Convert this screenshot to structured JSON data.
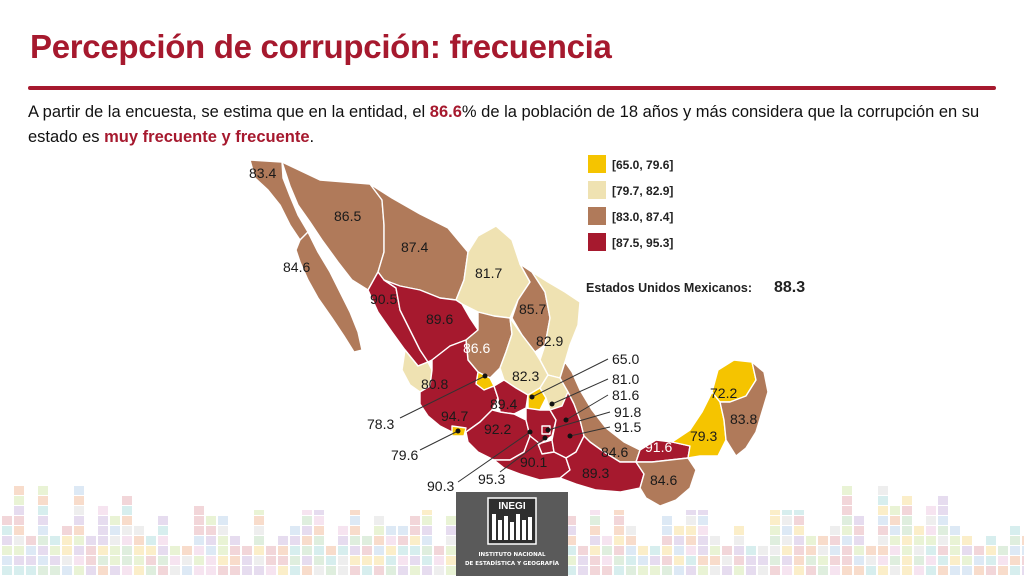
{
  "title": "Percepción de corrupción: frecuencia",
  "intro": {
    "prefix": "A partir de la encuesta, se estima que en la entidad, el ",
    "highlight_value": "86.6",
    "middle": "% de la población de 18 años y más considera que la corrupción en su estado es ",
    "highlight_phrase": "muy frecuente y frecuente",
    "suffix": "."
  },
  "colors": {
    "title": "#a6192e",
    "range_1": "#f5c400",
    "range_2": "#efe2b2",
    "range_3": "#b07a5a",
    "range_4": "#a6192e"
  },
  "map": {
    "legend": [
      {
        "label": "[65.0, 79.6]",
        "color": "#f5c400"
      },
      {
        "label": "[79.7, 82.9]",
        "color": "#efe2b2"
      },
      {
        "label": "[83.0, 87.4]",
        "color": "#b07a5a"
      },
      {
        "label": "[87.5, 95.3]",
        "color": "#a6192e"
      }
    ],
    "national_label": "Estados Unidos Mexicanos:",
    "national_value": "88.3",
    "values": {
      "bc": "83.4",
      "bcs": "84.6",
      "son": "86.5",
      "chih": "87.4",
      "coah": "81.7",
      "nl": "85.7",
      "tamps": "82.9",
      "sin": "90.5",
      "dgo": "89.6",
      "zac": "86.6",
      "nay": "80.8",
      "ags_callout": "78.3",
      "slp": "82.3",
      "jal": "94.7",
      "col_callout": "79.6",
      "mich": "92.2",
      "gto": "89.4",
      "qro": "65.0",
      "hgo": "81.0",
      "tlax": "81.6",
      "mex": "91.8",
      "pue": "91.5",
      "mor": "90.3",
      "cdmx": "95.3",
      "gro": "90.1",
      "oax": "89.3",
      "ver": "84.6",
      "tab": "91.6",
      "camp": "79.3",
      "yuc": "72.2",
      "qroo": "83.8",
      "chis": "84.6"
    }
  },
  "logo": {
    "word": "INEGI",
    "line1": "INSTITUTO NACIONAL",
    "line2": "DE ESTADÍSTICA Y GEOGRAFÍA"
  }
}
